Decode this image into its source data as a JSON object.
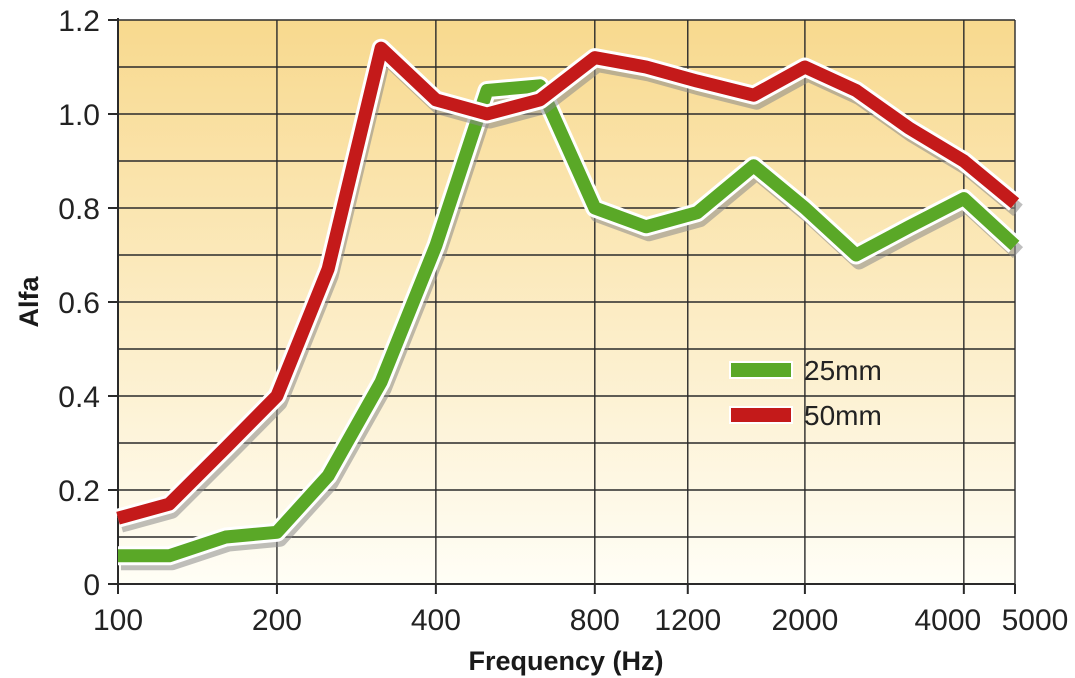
{
  "chart_data": {
    "type": "line",
    "xlabel": "Frequency (Hz)",
    "ylabel": "Alfa",
    "x_scale": "log",
    "x_ticks": [
      100,
      200,
      400,
      800,
      1200,
      2000,
      4000,
      5000
    ],
    "x_tick_labels": [
      "100",
      "200",
      "400",
      "800",
      "1200",
      "2000",
      "4000",
      "5000"
    ],
    "xlim": [
      100,
      5000
    ],
    "ylim": [
      0,
      1.2
    ],
    "y_ticks": [
      0,
      0.2,
      0.4,
      0.6,
      0.8,
      1.0,
      1.2
    ],
    "y_tick_labels": [
      "0",
      "0.2",
      "0.4",
      "0.6",
      "0.8",
      "1.0",
      "1.2"
    ],
    "grid": true,
    "legend_position": "center-right",
    "x": [
      100,
      125,
      160,
      200,
      250,
      315,
      400,
      500,
      630,
      800,
      1000,
      1250,
      1600,
      2000,
      2500,
      3150,
      4000,
      5000
    ],
    "series": [
      {
        "name": "25mm",
        "color": "#5aa827",
        "values": [
          0.06,
          0.06,
          0.1,
          0.11,
          0.23,
          0.43,
          0.72,
          1.05,
          1.06,
          0.8,
          0.76,
          0.79,
          0.89,
          0.8,
          0.7,
          0.76,
          0.82,
          0.72
        ]
      },
      {
        "name": "50mm",
        "color": "#c41a1a",
        "values": [
          0.14,
          0.17,
          0.29,
          0.4,
          0.67,
          1.14,
          1.03,
          1.0,
          1.03,
          1.12,
          1.1,
          1.07,
          1.04,
          1.1,
          1.05,
          0.97,
          0.9,
          0.81
        ]
      }
    ],
    "background_gradient": [
      "#f8d98e",
      "#fffef6"
    ]
  }
}
